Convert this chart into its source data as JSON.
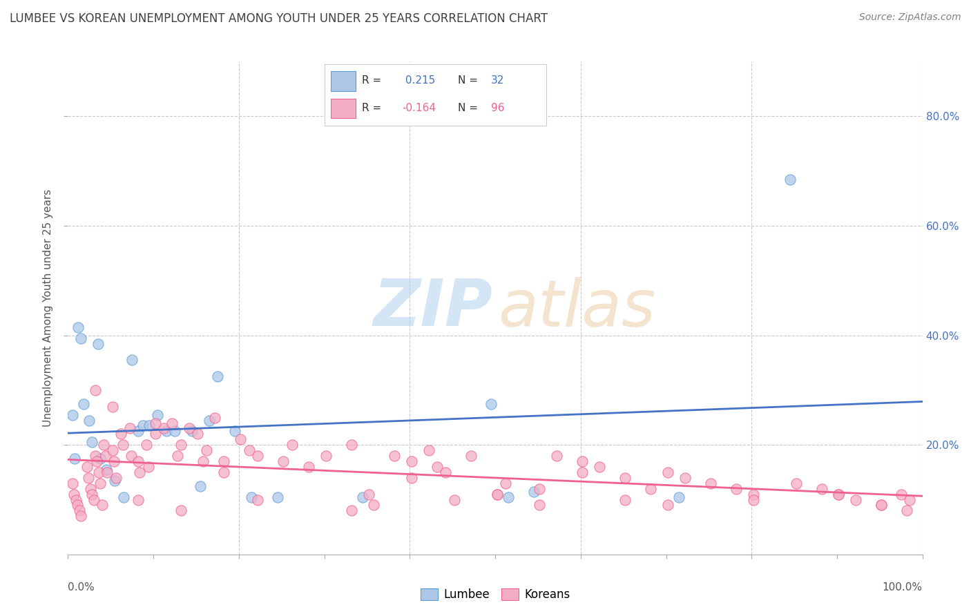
{
  "title": "LUMBEE VS KOREAN UNEMPLOYMENT AMONG YOUTH UNDER 25 YEARS CORRELATION CHART",
  "source": "Source: ZipAtlas.com",
  "ylabel": "Unemployment Among Youth under 25 years",
  "xlim": [
    0,
    1.0
  ],
  "ylim": [
    0,
    0.9
  ],
  "right_yticks": [
    0.2,
    0.4,
    0.6,
    0.8
  ],
  "right_yticklabels": [
    "20.0%",
    "40.0%",
    "60.0%",
    "80.0%"
  ],
  "xticklabels_outer": [
    "0.0%",
    "100.0%"
  ],
  "watermark_zip": "ZIP",
  "watermark_atlas": "atlas",
  "lumbee_color": "#adc6e8",
  "korean_color": "#f4aec4",
  "lumbee_edge_color": "#5b9bd5",
  "korean_edge_color": "#f06090",
  "lumbee_line_color": "#4472c4",
  "korean_line_color": "#f06090",
  "lumbee_R": 0.215,
  "lumbee_N": 32,
  "korean_R": -0.164,
  "korean_N": 96,
  "legend_label_lumbee": "Lumbee",
  "legend_label_korean": "Koreans",
  "background_color": "#ffffff",
  "grid_color": "#c8c8c8",
  "title_color": "#404040",
  "source_color": "#808080",
  "right_tick_color": "#4472c4",
  "lumbee_x": [
    0.005,
    0.008,
    0.012,
    0.015,
    0.018,
    0.025,
    0.028,
    0.035,
    0.038,
    0.045,
    0.055,
    0.065,
    0.075,
    0.082,
    0.088,
    0.095,
    0.105,
    0.115,
    0.125,
    0.145,
    0.155,
    0.165,
    0.175,
    0.195,
    0.215,
    0.245,
    0.345,
    0.495,
    0.515,
    0.545,
    0.715,
    0.845
  ],
  "lumbee_y": [
    0.255,
    0.175,
    0.415,
    0.395,
    0.275,
    0.245,
    0.205,
    0.385,
    0.175,
    0.155,
    0.135,
    0.105,
    0.355,
    0.225,
    0.235,
    0.235,
    0.255,
    0.225,
    0.225,
    0.225,
    0.125,
    0.245,
    0.325,
    0.225,
    0.105,
    0.105,
    0.105,
    0.275,
    0.105,
    0.115,
    0.105,
    0.685
  ],
  "korean_x": [
    0.005,
    0.007,
    0.009,
    0.011,
    0.013,
    0.015,
    0.022,
    0.024,
    0.026,
    0.028,
    0.03,
    0.032,
    0.034,
    0.036,
    0.038,
    0.04,
    0.042,
    0.044,
    0.046,
    0.052,
    0.054,
    0.056,
    0.062,
    0.064,
    0.072,
    0.074,
    0.082,
    0.084,
    0.092,
    0.094,
    0.102,
    0.112,
    0.122,
    0.128,
    0.132,
    0.142,
    0.152,
    0.158,
    0.162,
    0.172,
    0.182,
    0.202,
    0.212,
    0.222,
    0.252,
    0.262,
    0.302,
    0.332,
    0.352,
    0.358,
    0.382,
    0.402,
    0.422,
    0.432,
    0.442,
    0.472,
    0.502,
    0.512,
    0.552,
    0.572,
    0.602,
    0.622,
    0.652,
    0.682,
    0.702,
    0.722,
    0.752,
    0.782,
    0.802,
    0.852,
    0.882,
    0.902,
    0.922,
    0.952,
    0.975,
    0.985,
    0.032,
    0.052,
    0.082,
    0.102,
    0.132,
    0.182,
    0.222,
    0.282,
    0.332,
    0.402,
    0.452,
    0.502,
    0.552,
    0.602,
    0.652,
    0.702,
    0.802,
    0.902,
    0.952,
    0.982
  ],
  "korean_y": [
    0.13,
    0.11,
    0.1,
    0.09,
    0.08,
    0.07,
    0.16,
    0.14,
    0.12,
    0.11,
    0.1,
    0.18,
    0.17,
    0.15,
    0.13,
    0.09,
    0.2,
    0.18,
    0.15,
    0.19,
    0.17,
    0.14,
    0.22,
    0.2,
    0.23,
    0.18,
    0.17,
    0.15,
    0.2,
    0.16,
    0.22,
    0.23,
    0.24,
    0.18,
    0.2,
    0.23,
    0.22,
    0.17,
    0.19,
    0.25,
    0.17,
    0.21,
    0.19,
    0.18,
    0.17,
    0.2,
    0.18,
    0.2,
    0.11,
    0.09,
    0.18,
    0.17,
    0.19,
    0.16,
    0.15,
    0.18,
    0.11,
    0.13,
    0.12,
    0.18,
    0.17,
    0.16,
    0.14,
    0.12,
    0.15,
    0.14,
    0.13,
    0.12,
    0.11,
    0.13,
    0.12,
    0.11,
    0.1,
    0.09,
    0.11,
    0.1,
    0.3,
    0.27,
    0.1,
    0.24,
    0.08,
    0.15,
    0.1,
    0.16,
    0.08,
    0.14,
    0.1,
    0.11,
    0.09,
    0.15,
    0.1,
    0.09,
    0.1,
    0.11,
    0.09,
    0.08
  ]
}
